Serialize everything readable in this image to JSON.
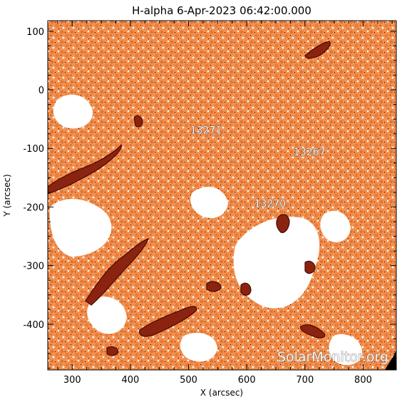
{
  "title": "H-alpha   6-Apr-2023 06:42:00.000",
  "x_axis": {
    "label": "X (arcsec)",
    "ticks": [
      "300",
      "400",
      "500",
      "600",
      "700",
      "800"
    ],
    "range": [
      258,
      857
    ]
  },
  "y_axis": {
    "label": "Y (arcsec)",
    "ticks": [
      "100",
      "0",
      "-100",
      "-200",
      "-300",
      "-400"
    ],
    "range": [
      -478,
      118
    ]
  },
  "active_regions": [
    {
      "label": "13271",
      "x": 530,
      "y": -75
    },
    {
      "label": "13267",
      "x": 708,
      "y": -112
    },
    {
      "label": "13270",
      "x": 640,
      "y": -200
    }
  ],
  "watermark": "SolarMonitor.org",
  "colors": {
    "chromosphere": "#f08a45",
    "chromosphere_dark": "#d4621a",
    "filament": "#7a1a08",
    "filament_core": "#4a0a02",
    "background": "#ffffff"
  }
}
